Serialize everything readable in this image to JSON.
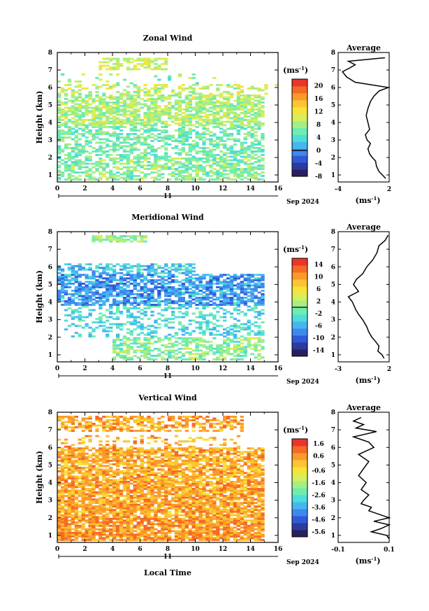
{
  "figure": {
    "date_label": "Sep 2024",
    "day_label": "11",
    "xlabel": "Local Time",
    "ylabel": "Height (km)",
    "units_label": "(ms",
    "units_sup": "-1",
    "average_title": "Average"
  },
  "chart_data": [
    {
      "type": "heatmap",
      "title": "Zonal Wind",
      "xlabel": "Local Time",
      "ylabel": "Height (km)",
      "xlim": [
        0,
        16
      ],
      "ylim": [
        0.6,
        8
      ],
      "xticks": [
        0,
        2,
        4,
        6,
        8,
        10,
        12,
        14,
        16
      ],
      "yticks": [
        1,
        2,
        3,
        4,
        5,
        6,
        7,
        8
      ],
      "colorbar": {
        "min": -8,
        "max": 22,
        "ticks": [
          -8,
          -4,
          0,
          4,
          8,
          12,
          16,
          20
        ],
        "zero_line": 0
      },
      "seed": 11,
      "base_color_value": 6.5,
      "coverage": [
        {
          "x0": 0.0,
          "x1": 15.0,
          "y0": 0.7,
          "y1": 2.0,
          "fill": 0.62,
          "v": 7.0
        },
        {
          "x0": 0.0,
          "x1": 15.0,
          "y0": 2.0,
          "y1": 3.8,
          "fill": 0.55,
          "v": 6.0
        },
        {
          "x0": 0.0,
          "x1": 15.0,
          "y0": 3.8,
          "y1": 5.6,
          "fill": 0.7,
          "v": 8.5
        },
        {
          "x0": 0.0,
          "x1": 16.0,
          "y0": 5.6,
          "y1": 6.2,
          "fill": 0.35,
          "v": 9.5
        },
        {
          "x0": 0.0,
          "x1": 12.0,
          "y0": 6.2,
          "y1": 6.8,
          "fill": 0.1,
          "v": 7.0
        },
        {
          "x0": 3.0,
          "x1": 8.0,
          "y0": 7.0,
          "y1": 7.7,
          "fill": 0.55,
          "v": 10.0
        }
      ],
      "average": {
        "xlim": [
          -4,
          2
        ],
        "xticks": [
          -4,
          2
        ],
        "heights": [
          0.8,
          1.0,
          1.2,
          1.5,
          1.8,
          2.0,
          2.2,
          2.5,
          2.8,
          3.0,
          3.3,
          3.6,
          4.0,
          4.4,
          4.8,
          5.2,
          5.5,
          5.8,
          6.0,
          6.3,
          6.6,
          6.9,
          7.1,
          7.3,
          7.5,
          7.7
        ],
        "values": [
          1.6,
          1.2,
          0.8,
          0.5,
          0.4,
          0.0,
          -0.3,
          -0.5,
          -0.2,
          -0.6,
          -0.8,
          -0.3,
          -0.5,
          -0.7,
          -0.5,
          -0.2,
          0.2,
          0.8,
          1.9,
          -2.0,
          -3.0,
          -3.5,
          -2.7,
          -2.0,
          -2.8,
          1.5
        ]
      }
    },
    {
      "type": "heatmap",
      "title": "Meridional Wind",
      "xlabel": "Local Time",
      "ylabel": "Height (km)",
      "xlim": [
        0,
        16
      ],
      "ylim": [
        0.6,
        8
      ],
      "xticks": [
        0,
        2,
        4,
        6,
        8,
        10,
        12,
        14,
        16
      ],
      "yticks": [
        1,
        2,
        3,
        4,
        5,
        6,
        7,
        8
      ],
      "colorbar": {
        "min": -16,
        "max": 16,
        "ticks": [
          -14,
          -10,
          -6,
          -2,
          2,
          6,
          10,
          14
        ],
        "zero_line": 0
      },
      "seed": 23,
      "base_color_value": -5,
      "coverage": [
        {
          "x0": 4.0,
          "x1": 15.0,
          "y0": 0.7,
          "y1": 2.0,
          "fill": 0.58,
          "v": 0.0
        },
        {
          "x0": 0.5,
          "x1": 15.0,
          "y0": 2.0,
          "y1": 3.8,
          "fill": 0.35,
          "v": -3.5
        },
        {
          "x0": 0.0,
          "x1": 15.0,
          "y0": 3.8,
          "y1": 5.6,
          "fill": 0.68,
          "v": -7.0
        },
        {
          "x0": 0.0,
          "x1": 10.0,
          "y0": 5.6,
          "y1": 6.2,
          "fill": 0.55,
          "v": -5.0
        },
        {
          "x0": 2.5,
          "x1": 6.5,
          "y0": 7.4,
          "y1": 7.8,
          "fill": 0.8,
          "v": 0.5
        }
      ],
      "average": {
        "xlim": [
          -3,
          2
        ],
        "xticks": [
          -3,
          2
        ],
        "heights": [
          0.8,
          1.0,
          1.2,
          1.5,
          1.8,
          2.0,
          2.3,
          2.6,
          3.0,
          3.3,
          3.6,
          4.0,
          4.3,
          4.6,
          5.0,
          5.3,
          5.6,
          6.0,
          6.4,
          6.8,
          7.2,
          7.5,
          7.8
        ],
        "values": [
          1.5,
          1.3,
          0.9,
          1.0,
          0.6,
          0.3,
          0.0,
          -0.2,
          -0.6,
          -1.0,
          -1.3,
          -1.6,
          -2.0,
          -1.0,
          -1.5,
          -1.2,
          -0.6,
          -0.2,
          0.4,
          0.8,
          1.0,
          1.6,
          1.9
        ]
      }
    },
    {
      "type": "heatmap",
      "title": "Vertical Wind",
      "xlabel": "Local Time",
      "ylabel": "Height (km)",
      "xlim": [
        0,
        16
      ],
      "ylim": [
        0.6,
        8
      ],
      "xticks": [
        0,
        2,
        4,
        6,
        8,
        10,
        12,
        14,
        16
      ],
      "yticks": [
        1,
        2,
        3,
        4,
        5,
        6,
        7,
        8
      ],
      "colorbar": {
        "min": -6.0,
        "max": 2.0,
        "ticks": [
          -5.6,
          -4.6,
          -3.6,
          -2.6,
          -1.6,
          -0.6,
          0.6,
          1.6
        ],
        "zero_line": null
      },
      "seed": 37,
      "base_color_value": 0.2,
      "coverage": [
        {
          "x0": 0.0,
          "x1": 15.0,
          "y0": 0.7,
          "y1": 2.0,
          "fill": 0.85,
          "v": 0.6
        },
        {
          "x0": 0.0,
          "x1": 15.0,
          "y0": 2.0,
          "y1": 4.2,
          "fill": 0.82,
          "v": 0.4
        },
        {
          "x0": 0.0,
          "x1": 15.0,
          "y0": 4.2,
          "y1": 6.0,
          "fill": 0.78,
          "v": 0.3
        },
        {
          "x0": 0.0,
          "x1": 13.5,
          "y0": 6.0,
          "y1": 6.7,
          "fill": 0.2,
          "v": 0.2
        },
        {
          "x0": 0.0,
          "x1": 13.5,
          "y0": 6.9,
          "y1": 7.8,
          "fill": 0.6,
          "v": 0.4
        }
      ],
      "average": {
        "xlim": [
          -0.1,
          0.1
        ],
        "xticks": [
          -0.1,
          0.1
        ],
        "heights": [
          0.8,
          1.0,
          1.2,
          1.4,
          1.6,
          1.8,
          2.0,
          2.2,
          2.4,
          2.6,
          2.8,
          3.0,
          3.3,
          3.6,
          4.0,
          4.4,
          4.8,
          5.2,
          5.6,
          6.0,
          6.3,
          6.6,
          6.9,
          7.1,
          7.3,
          7.5,
          7.7
        ],
        "values": [
          0.1,
          0.09,
          0.03,
          0.07,
          0.1,
          0.04,
          0.1,
          0.06,
          0.02,
          0.03,
          -0.01,
          0.0,
          0.02,
          -0.01,
          0.01,
          -0.02,
          0.0,
          0.02,
          -0.02,
          0.04,
          0.02,
          -0.04,
          0.05,
          -0.03,
          0.0,
          -0.04,
          -0.01
        ]
      }
    }
  ]
}
